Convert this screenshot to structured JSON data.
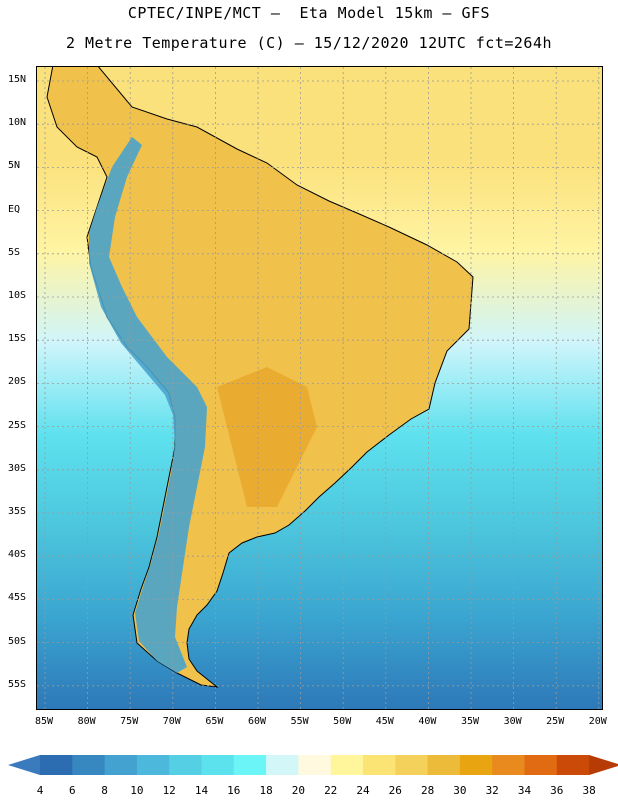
{
  "header": {
    "line1": "CPTEC/INPE/MCT —  Eta Model 15km — GFS",
    "line2": "2 Metre Temperature (C) — 15/12/2020 12UTC fct=264h"
  },
  "map": {
    "lat_ticks": [
      "15N",
      "10N",
      "5N",
      "EQ",
      "5S",
      "10S",
      "15S",
      "20S",
      "25S",
      "30S",
      "35S",
      "40S",
      "45S",
      "50S",
      "55S"
    ],
    "lon_ticks": [
      "85W",
      "80W",
      "75W",
      "70W",
      "65W",
      "60W",
      "55W",
      "50W",
      "45W",
      "40W",
      "35W",
      "30W",
      "25W",
      "20W"
    ],
    "ocean_gradient": [
      "#fbe17b",
      "#fbe17b",
      "#fff4a3",
      "#cff5fb",
      "#5ee1ee",
      "#4cc6dd",
      "#3aa4d0",
      "#2d78b8"
    ]
  },
  "colorbar": {
    "labels": [
      "4",
      "6",
      "8",
      "10",
      "12",
      "14",
      "16",
      "18",
      "20",
      "22",
      "24",
      "26",
      "28",
      "30",
      "32",
      "34",
      "36",
      "38"
    ],
    "colors": [
      "#2c6cb0",
      "#3788c0",
      "#43a2cf",
      "#4cb8dc",
      "#54cfe4",
      "#5ce2ec",
      "#6cf5f7",
      "#d3f7f9",
      "#fff9e0",
      "#fff69c",
      "#fbe473",
      "#f3d15a",
      "#ecbb3a",
      "#e9a411",
      "#e88a1d",
      "#e06b12",
      "#cc4a08"
    ],
    "low_color": "#3a7bbd",
    "high_color": "#b73b04"
  }
}
